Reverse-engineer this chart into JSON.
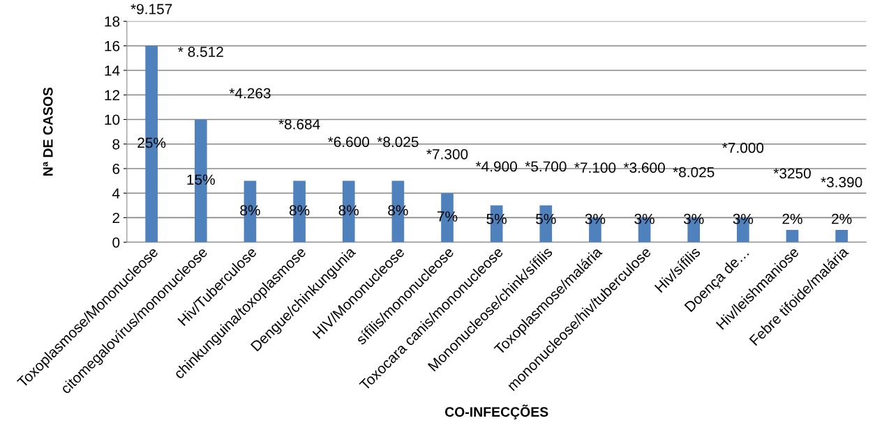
{
  "chart_data": {
    "type": "bar",
    "xlabel": "CO-INFECÇÕES",
    "ylabel": "Nª DE CASOS",
    "categories": [
      "Toxoplasmose/Mononucleose",
      "citomegalovírus/mononucleose",
      "Hiv/Tuberculose",
      "chinkunguina/toxoplasmose",
      "Dengue/chinkungunia",
      "HIV/Mononucleose",
      "sífilis/mononucleose",
      "Toxocara canis/mononucleose",
      "Mononucleose/chink/sífilis",
      "Toxoplasmose/malária",
      "mononucleose/hiv/tuberculose",
      "Hiv/sífilis",
      "Doença de…",
      "Hiv/leishmaniose",
      "Febre tifoide/malária"
    ],
    "values": [
      16,
      10,
      5,
      5,
      5,
      5,
      4,
      3,
      3,
      2,
      2,
      2,
      2,
      1,
      1
    ],
    "color": "#4f81bd",
    "ylim": [
      0,
      18
    ],
    "yticks": [
      0,
      2,
      4,
      6,
      8,
      10,
      12,
      14,
      16,
      18
    ],
    "grid": "y",
    "annotations": [
      "*9.157",
      "* 8.512",
      "*4.263",
      "*8.684",
      "*6.600",
      "*8.025",
      "*7.300",
      "*4.900",
      "*5.700",
      "*7.100",
      "*3.600",
      "*8.025",
      "*7.000",
      "*3250",
      "*3.390",
      "25%",
      "15%",
      "8%",
      "8%",
      "8%",
      "8%",
      "7%",
      "5%",
      "5%",
      "3%",
      "3%",
      "3%",
      "3%",
      "2%",
      "2%"
    ]
  }
}
